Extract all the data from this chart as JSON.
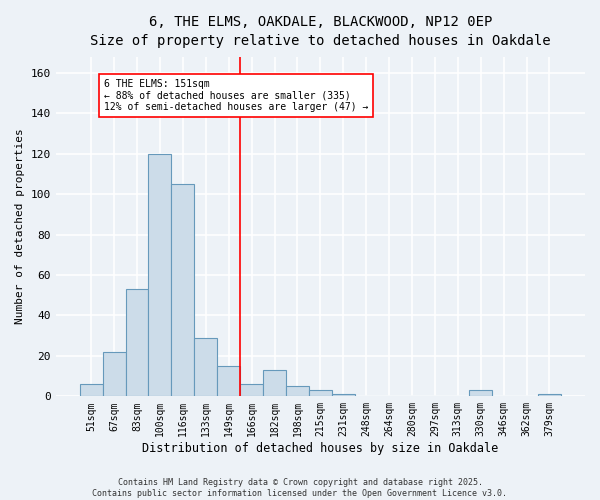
{
  "title_line1": "6, THE ELMS, OAKDALE, BLACKWOOD, NP12 0EP",
  "title_line2": "Size of property relative to detached houses in Oakdale",
  "xlabel": "Distribution of detached houses by size in Oakdale",
  "ylabel": "Number of detached properties",
  "bar_labels": [
    "51sqm",
    "67sqm",
    "83sqm",
    "100sqm",
    "116sqm",
    "133sqm",
    "149sqm",
    "166sqm",
    "182sqm",
    "198sqm",
    "215sqm",
    "231sqm",
    "248sqm",
    "264sqm",
    "280sqm",
    "297sqm",
    "313sqm",
    "330sqm",
    "346sqm",
    "362sqm",
    "379sqm"
  ],
  "bar_values": [
    6,
    22,
    53,
    120,
    105,
    29,
    15,
    6,
    13,
    5,
    3,
    1,
    0,
    0,
    0,
    0,
    0,
    3,
    0,
    0,
    1
  ],
  "bar_color": "#ccdce9",
  "bar_edge_color": "#6699bb",
  "ylim": [
    0,
    168
  ],
  "yticks": [
    0,
    20,
    40,
    60,
    80,
    100,
    120,
    140,
    160
  ],
  "vline_color": "red",
  "annotation_text": "6 THE ELMS: 151sqm\n← 88% of detached houses are smaller (335)\n12% of semi-detached houses are larger (47) →",
  "annotation_box_color": "white",
  "annotation_box_edge": "red",
  "copyright_text": "Contains HM Land Registry data © Crown copyright and database right 2025.\nContains public sector information licensed under the Open Government Licence v3.0.",
  "bg_color": "#edf2f7",
  "grid_color": "white",
  "font_family": "DejaVu Sans Mono"
}
